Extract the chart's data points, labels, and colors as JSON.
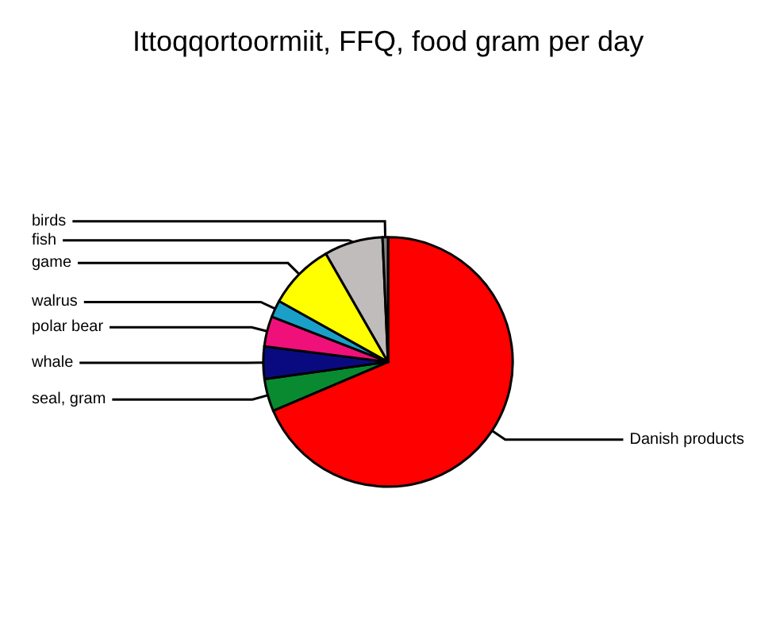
{
  "chart_data": {
    "type": "pie",
    "title": "Ittoqqortoormiit, FFQ, food gram per day",
    "categories": [
      "Danish products",
      "seal, gram",
      "whale",
      "polar bear",
      "walrus",
      "game",
      "fish",
      "birds"
    ],
    "values": [
      68.6,
      4.2,
      4.2,
      3.9,
      2.2,
      8.6,
      7.6,
      0.7
    ],
    "colors": [
      "#ff0000",
      "#0a8a30",
      "#0a0a80",
      "#f0107a",
      "#1aa0c8",
      "#ffff00",
      "#c0bcbc",
      "#808080"
    ],
    "legend": false
  }
}
